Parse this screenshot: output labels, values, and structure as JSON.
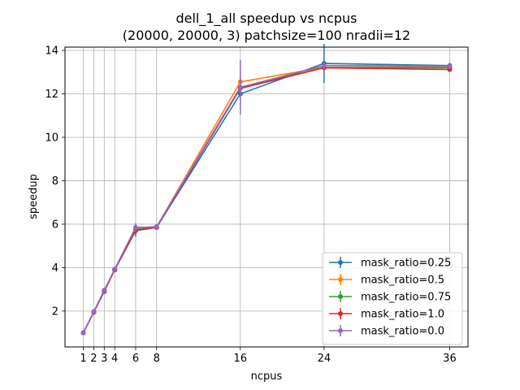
{
  "chart_data": {
    "type": "line",
    "title": "dell_1_all speedup vs ncpus",
    "subtitle": "(20000, 20000, 3) patchsize=100 nradii=12",
    "xlabel": "ncpus",
    "ylabel": "speedup",
    "xlim": [
      -0.75,
      37.75
    ],
    "ylim": [
      0.35,
      14.15
    ],
    "x_ticks": [
      1,
      2,
      3,
      4,
      6,
      8,
      16,
      24,
      36
    ],
    "y_ticks": [
      2,
      4,
      6,
      8,
      10,
      12,
      14
    ],
    "grid": true,
    "legend_position": "lower-right",
    "x": [
      1,
      2,
      3,
      4,
      6,
      8,
      16,
      24,
      36
    ],
    "series": [
      {
        "name": "mask_ratio=0.25",
        "color": "#1f77b4",
        "values": [
          1.0,
          1.95,
          2.9,
          3.9,
          5.7,
          5.85,
          12.0,
          13.4,
          13.3
        ],
        "errors": [
          0.03,
          0.05,
          0.07,
          0.08,
          0.28,
          0.1,
          0.35,
          0.9,
          0.1
        ]
      },
      {
        "name": "mask_ratio=0.5",
        "color": "#ff7f0e",
        "values": [
          1.0,
          1.97,
          2.95,
          3.92,
          5.78,
          5.88,
          12.55,
          13.22,
          13.25
        ],
        "errors": [
          0.03,
          0.05,
          0.06,
          0.07,
          0.2,
          0.1,
          0.3,
          0.15,
          0.1
        ]
      },
      {
        "name": "mask_ratio=0.75",
        "color": "#2ca02c",
        "values": [
          1.0,
          1.96,
          2.93,
          3.92,
          5.75,
          5.86,
          12.3,
          13.2,
          13.2
        ],
        "errors": [
          0.03,
          0.05,
          0.06,
          0.07,
          0.2,
          0.1,
          0.25,
          0.12,
          0.1
        ]
      },
      {
        "name": "mask_ratio=1.0",
        "color": "#d62728",
        "values": [
          1.0,
          1.95,
          2.92,
          3.9,
          5.72,
          5.85,
          12.25,
          13.2,
          13.12
        ],
        "errors": [
          0.03,
          0.05,
          0.06,
          0.07,
          0.2,
          0.1,
          0.25,
          0.12,
          0.1
        ]
      },
      {
        "name": "mask_ratio=0.0",
        "color": "#9467bd",
        "values": [
          1.0,
          1.97,
          2.96,
          3.93,
          5.85,
          5.88,
          12.3,
          13.3,
          13.28
        ],
        "errors": [
          0.03,
          0.05,
          0.07,
          0.08,
          0.2,
          0.12,
          1.25,
          0.2,
          0.15
        ]
      }
    ]
  }
}
